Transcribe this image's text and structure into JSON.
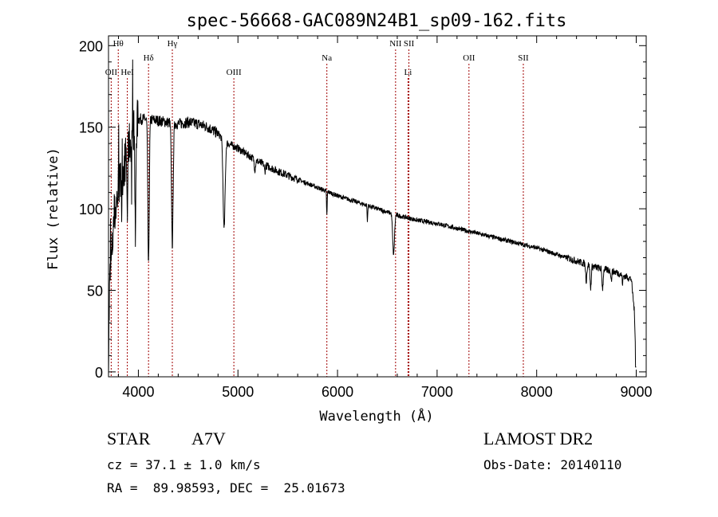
{
  "chart_data": {
    "type": "line",
    "title": "spec-56668-GAC089N24B1_sp09-162.fits",
    "xlabel": "Wavelength (Å)",
    "ylabel": "Flux (relative)",
    "xlim": [
      3700,
      9100
    ],
    "ylim": [
      -3,
      206
    ],
    "xticks": [
      4000,
      5000,
      6000,
      7000,
      8000,
      9000
    ],
    "xtick_labels": [
      "4000",
      "5000",
      "6000",
      "7000",
      "8000",
      "9000"
    ],
    "yticks": [
      0,
      50,
      100,
      150,
      200
    ],
    "ytick_labels": [
      "0",
      "50",
      "100",
      "150",
      "200"
    ],
    "grid": false,
    "legend": "none",
    "line_color": "#000000",
    "marker_color": "#a00000",
    "markers": [
      {
        "label": "Hθ",
        "x": 3798
      },
      {
        "label": "OII",
        "x": 3727
      },
      {
        "label": "HeI",
        "x": 3889
      },
      {
        "label": "Hδ",
        "x": 4102
      },
      {
        "label": "Hγ",
        "x": 4341
      },
      {
        "label": "OIII",
        "x": 4959
      },
      {
        "label": "Na",
        "x": 5893
      },
      {
        "label": "NII",
        "x": 6583
      },
      {
        "label": "SII",
        "x": 6717
      },
      {
        "label": "Li",
        "x": 6708
      },
      {
        "label": "OII",
        "x": 7320
      },
      {
        "label": "SII",
        "x": 7866
      }
    ],
    "continuum": [
      [
        3700,
        5
      ],
      [
        3712,
        55
      ],
      [
        3730,
        70
      ],
      [
        3760,
        95
      ],
      [
        3800,
        112
      ],
      [
        3850,
        125
      ],
      [
        3900,
        138
      ],
      [
        3950,
        148
      ],
      [
        4000,
        155
      ],
      [
        4100,
        155
      ],
      [
        4200,
        154
      ],
      [
        4300,
        153
      ],
      [
        4400,
        152
      ],
      [
        4500,
        153
      ],
      [
        4600,
        152
      ],
      [
        4700,
        150
      ],
      [
        4800,
        146
      ],
      [
        4900,
        140
      ],
      [
        5000,
        137
      ],
      [
        5200,
        129
      ],
      [
        5400,
        123
      ],
      [
        5600,
        118
      ],
      [
        5800,
        113
      ],
      [
        6000,
        108
      ],
      [
        6200,
        104
      ],
      [
        6400,
        100
      ],
      [
        6600,
        96
      ],
      [
        6800,
        93
      ],
      [
        7000,
        91
      ],
      [
        7200,
        88
      ],
      [
        7400,
        85
      ],
      [
        7600,
        82
      ],
      [
        7800,
        79
      ],
      [
        8000,
        76
      ],
      [
        8200,
        72
      ],
      [
        8400,
        68
      ],
      [
        8600,
        64
      ],
      [
        8800,
        61
      ],
      [
        8950,
        57
      ],
      [
        8980,
        38
      ],
      [
        9000,
        3
      ]
    ],
    "absorption_lines": [
      {
        "x": 3835,
        "depth": 30,
        "width": 3
      },
      {
        "x": 3889,
        "depth": 40,
        "width": 4
      },
      {
        "x": 3933,
        "depth": 35,
        "width": 3
      },
      {
        "x": 3970,
        "depth": 72,
        "width": 5
      },
      {
        "x": 4102,
        "depth": 90,
        "width": 7
      },
      {
        "x": 4341,
        "depth": 75,
        "width": 8
      },
      {
        "x": 4861,
        "depth": 55,
        "width": 10
      },
      {
        "x": 5170,
        "depth": 6,
        "width": 6
      },
      {
        "x": 5270,
        "depth": 4,
        "width": 5
      },
      {
        "x": 5893,
        "depth": 15,
        "width": 3
      },
      {
        "x": 6300,
        "depth": 10,
        "width": 3
      },
      {
        "x": 6563,
        "depth": 25,
        "width": 9
      },
      {
        "x": 8498,
        "depth": 10,
        "width": 6
      },
      {
        "x": 8542,
        "depth": 14,
        "width": 6
      },
      {
        "x": 8662,
        "depth": 12,
        "width": 6
      },
      {
        "x": 8750,
        "depth": 6,
        "width": 4
      },
      {
        "x": 8863,
        "depth": 5,
        "width": 4
      }
    ]
  },
  "info": {
    "object_class": "STAR",
    "subclass": "A7V",
    "redshift_text": "cz = 37.1 ± 1.0 km/s",
    "coords_text": "RA =  89.98593, DEC =  25.01673",
    "survey": "LAMOST DR2",
    "obs_date_text": "Obs-Date: 20140110"
  }
}
